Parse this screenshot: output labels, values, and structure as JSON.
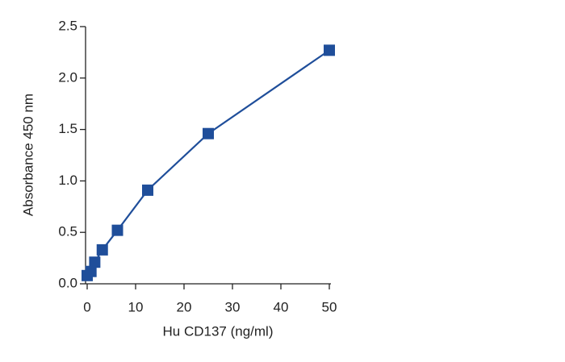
{
  "chart_data": {
    "type": "line",
    "x_label": "Hu CD137 (ng/ml)",
    "y_label": "Absorbance 450 nm",
    "x": [
      0,
      0.78,
      1.5625,
      3.125,
      6.25,
      12.5,
      25,
      50
    ],
    "series": [
      {
        "color": "#1f4e9a",
        "values": [
          0.08,
          0.12,
          0.21,
          0.33,
          0.52,
          0.91,
          1.46,
          2.27
        ]
      }
    ],
    "xlim": [
      0,
      50
    ],
    "xticks": [
      0,
      10,
      20,
      30,
      40,
      50
    ],
    "ylim": [
      0,
      2.5
    ],
    "yticks": [
      {
        "value": 0,
        "label": "0.0"
      },
      0.5,
      {
        "value": 1,
        "label": "1.0"
      },
      1.5,
      {
        "value": 2,
        "label": "2.0"
      },
      2.5
    ]
  }
}
